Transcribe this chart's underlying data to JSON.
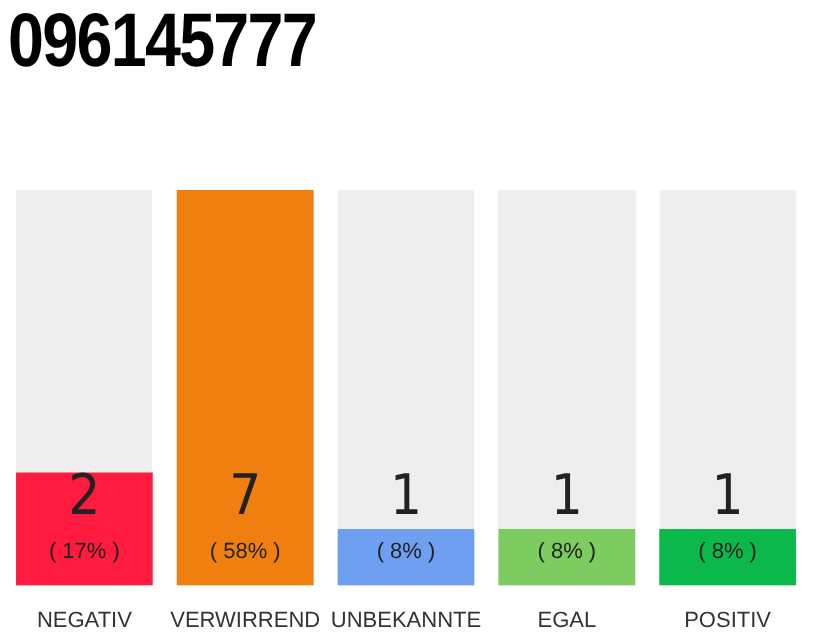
{
  "chart_data": {
    "type": "bar",
    "title": "096145777",
    "categories": [
      "NEGATIV",
      "VERWIRREND",
      "UNBEKANNTE",
      "EGAL",
      "POSITIV"
    ],
    "values": [
      2,
      7,
      1,
      1,
      1
    ],
    "colors": [
      "#ff1a40",
      "#f07f0f",
      "#6e9ff0",
      "#7ccc60",
      "#0bb84a"
    ],
    "ylim": [
      0,
      7
    ],
    "tick_labels": "x",
    "grid": false,
    "legend": false,
    "data_labels": true,
    "annotations": [
      "( 17% )",
      "( 58% )",
      "( 8% )",
      "( 8% )",
      "( 8% )"
    ]
  }
}
